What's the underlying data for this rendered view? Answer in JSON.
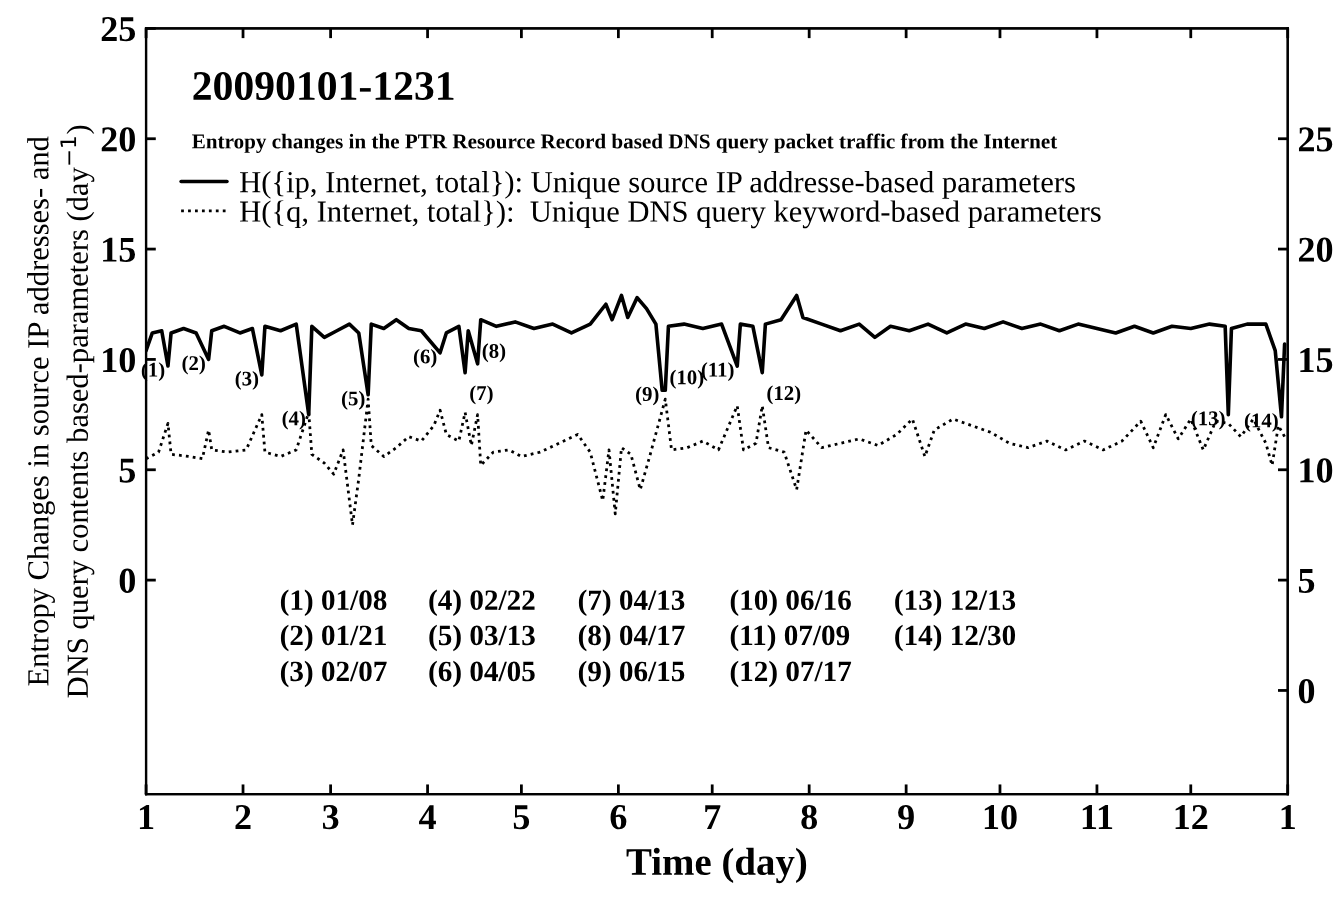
{
  "chart_data": {
    "type": "line",
    "title": "20090101-1231",
    "subtitle": "Entropy changes in the PTR Resource Record based DNS query packet traffic from the Internet",
    "xlabel": "Time (day)",
    "ylabel": "Entropy Changes in source IP addresses- and\nDNS query contents based-parameters (day$^{−1}$)",
    "xlim": [
      "2009-01-01",
      "2010-01-01"
    ],
    "xticks": [
      {
        "value": "2009-01-01",
        "label": "1"
      },
      {
        "value": "2009-02-01",
        "label": "2"
      },
      {
        "value": "2009-03-01",
        "label": "3"
      },
      {
        "value": "2009-04-01",
        "label": "4"
      },
      {
        "value": "2009-05-01",
        "label": "5"
      },
      {
        "value": "2009-06-01",
        "label": "6"
      },
      {
        "value": "2009-07-01",
        "label": "7"
      },
      {
        "value": "2009-08-01",
        "label": "8"
      },
      {
        "value": "2009-09-01",
        "label": "9"
      },
      {
        "value": "2009-10-01",
        "label": "10"
      },
      {
        "value": "2009-11-01",
        "label": "11"
      },
      {
        "value": "2009-12-01",
        "label": "12"
      },
      {
        "value": "2010-01-01",
        "label": "1"
      }
    ],
    "ylim": [
      -9.7,
      25
    ],
    "yticks": [
      0,
      5,
      10,
      15,
      20,
      25
    ],
    "y2lim": [
      -4.7,
      30
    ],
    "y2ticks": [
      0,
      5,
      10,
      15,
      20,
      25
    ],
    "grid": false,
    "legend": "top left",
    "marker": "none",
    "series": [
      {
        "name": "H({ip, Internet, total}): Unique source IP addresse-based parameters",
        "color": "#000000",
        "line_style": "solid",
        "x": [
          "2009-01-01",
          "2009-01-03",
          "2009-01-06",
          "2009-01-08",
          "2009-01-09",
          "2009-01-13",
          "2009-01-17",
          "2009-01-21",
          "2009-01-22",
          "2009-01-26",
          "2009-01-31",
          "2009-02-04",
          "2009-02-07",
          "2009-02-08",
          "2009-02-13",
          "2009-02-18",
          "2009-02-22",
          "2009-02-23",
          "2009-02-27",
          "2009-03-03",
          "2009-03-07",
          "2009-03-10",
          "2009-03-13",
          "2009-03-14",
          "2009-03-18",
          "2009-03-22",
          "2009-03-26",
          "2009-03-30",
          "2009-04-05",
          "2009-04-07",
          "2009-04-11",
          "2009-04-13",
          "2009-04-14",
          "2009-04-17",
          "2009-04-18",
          "2009-04-23",
          "2009-04-29",
          "2009-05-05",
          "2009-05-11",
          "2009-05-17",
          "2009-05-23",
          "2009-05-28",
          "2009-05-30",
          "2009-06-02",
          "2009-06-04",
          "2009-06-07",
          "2009-06-10",
          "2009-06-13",
          "2009-06-15",
          "2009-06-16",
          "2009-06-17",
          "2009-06-22",
          "2009-06-28",
          "2009-07-04",
          "2009-07-09",
          "2009-07-10",
          "2009-07-14",
          "2009-07-17",
          "2009-07-18",
          "2009-07-23",
          "2009-07-28",
          "2009-07-30",
          "2009-08-05",
          "2009-08-11",
          "2009-08-17",
          "2009-08-22",
          "2009-08-27",
          "2009-09-02",
          "2009-09-08",
          "2009-09-14",
          "2009-09-20",
          "2009-09-26",
          "2009-10-02",
          "2009-10-08",
          "2009-10-14",
          "2009-10-20",
          "2009-10-26",
          "2009-11-01",
          "2009-11-07",
          "2009-11-13",
          "2009-11-19",
          "2009-11-25",
          "2009-12-01",
          "2009-12-07",
          "2009-12-12",
          "2009-12-13",
          "2009-12-14",
          "2009-12-19",
          "2009-12-25",
          "2009-12-28",
          "2009-12-30",
          "2009-12-31"
        ],
        "values": [
          10.4,
          11.2,
          11.3,
          9.7,
          11.2,
          11.4,
          11.2,
          10.0,
          11.3,
          11.5,
          11.2,
          11.4,
          9.3,
          11.5,
          11.3,
          11.6,
          7.5,
          11.5,
          11.0,
          11.3,
          11.6,
          11.2,
          8.4,
          11.6,
          11.4,
          11.8,
          11.4,
          11.3,
          10.3,
          11.2,
          11.5,
          9.4,
          11.3,
          9.8,
          11.8,
          11.5,
          11.7,
          11.4,
          11.6,
          11.2,
          11.6,
          12.5,
          11.8,
          12.9,
          11.9,
          12.8,
          12.3,
          11.6,
          8.6,
          8.6,
          11.5,
          11.6,
          11.4,
          11.6,
          9.7,
          11.6,
          11.5,
          9.4,
          11.6,
          11.8,
          12.9,
          11.9,
          11.6,
          11.3,
          11.6,
          11.0,
          11.5,
          11.3,
          11.6,
          11.2,
          11.6,
          11.4,
          11.7,
          11.4,
          11.6,
          11.3,
          11.6,
          11.4,
          11.2,
          11.5,
          11.2,
          11.5,
          11.4,
          11.6,
          11.5,
          7.5,
          11.4,
          11.6,
          11.6,
          10.4,
          7.4,
          10.7
        ]
      },
      {
        "name": "H({q, Internet, total}):  Unique DNS query keyword-based parameters",
        "color": "#000000",
        "line_style": "dotted",
        "axis": "y2",
        "x": [
          "2009-01-01",
          "2009-01-05",
          "2009-01-08",
          "2009-01-09",
          "2009-01-15",
          "2009-01-19",
          "2009-01-21",
          "2009-01-22",
          "2009-01-27",
          "2009-02-02",
          "2009-02-07",
          "2009-02-08",
          "2009-02-13",
          "2009-02-18",
          "2009-02-22",
          "2009-02-23",
          "2009-02-27",
          "2009-03-02",
          "2009-03-05",
          "2009-03-08",
          "2009-03-10",
          "2009-03-13",
          "2009-03-14",
          "2009-03-18",
          "2009-03-22",
          "2009-03-26",
          "2009-03-30",
          "2009-04-03",
          "2009-04-05",
          "2009-04-07",
          "2009-04-11",
          "2009-04-13",
          "2009-04-15",
          "2009-04-17",
          "2009-04-18",
          "2009-04-22",
          "2009-04-27",
          "2009-05-01",
          "2009-05-07",
          "2009-05-13",
          "2009-05-19",
          "2009-05-23",
          "2009-05-27",
          "2009-05-29",
          "2009-05-31",
          "2009-06-02",
          "2009-06-05",
          "2009-06-08",
          "2009-06-11",
          "2009-06-16",
          "2009-06-18",
          "2009-06-23",
          "2009-06-28",
          "2009-07-03",
          "2009-07-09",
          "2009-07-11",
          "2009-07-15",
          "2009-07-17",
          "2009-07-19",
          "2009-07-24",
          "2009-07-28",
          "2009-07-31",
          "2009-08-05",
          "2009-08-11",
          "2009-08-17",
          "2009-08-23",
          "2009-08-29",
          "2009-09-03",
          "2009-09-07",
          "2009-09-10",
          "2009-09-16",
          "2009-09-22",
          "2009-09-28",
          "2009-10-04",
          "2009-10-10",
          "2009-10-16",
          "2009-10-22",
          "2009-10-28",
          "2009-11-03",
          "2009-11-09",
          "2009-11-15",
          "2009-11-19",
          "2009-11-23",
          "2009-11-27",
          "2009-12-01",
          "2009-12-05",
          "2009-12-09",
          "2009-12-13",
          "2009-12-17",
          "2009-12-21",
          "2009-12-25",
          "2009-12-27",
          "2009-12-29",
          "2009-12-31"
        ],
        "values": [
          10.5,
          10.8,
          12.1,
          10.7,
          10.6,
          10.5,
          11.8,
          10.9,
          10.8,
          10.9,
          12.5,
          10.8,
          10.6,
          10.9,
          12.6,
          10.7,
          10.3,
          9.8,
          10.9,
          7.5,
          9.6,
          13.2,
          11.1,
          10.6,
          11.0,
          11.5,
          11.3,
          12.0,
          12.7,
          11.6,
          11.3,
          12.6,
          11.1,
          12.5,
          10.2,
          10.8,
          10.9,
          10.6,
          10.8,
          11.2,
          11.6,
          10.8,
          8.6,
          10.9,
          8.0,
          11.0,
          10.7,
          9.1,
          10.6,
          13.2,
          10.9,
          11.0,
          11.3,
          10.9,
          12.9,
          10.9,
          11.2,
          12.9,
          11.0,
          10.8,
          9.1,
          11.8,
          11.0,
          11.2,
          11.4,
          11.1,
          11.6,
          12.3,
          10.6,
          11.8,
          12.3,
          12.0,
          11.7,
          11.2,
          11.0,
          11.3,
          10.9,
          11.3,
          10.9,
          11.3,
          12.2,
          11.0,
          12.5,
          11.4,
          12.3,
          10.9,
          12.2,
          12.1,
          11.5,
          12.3,
          11.2,
          10.2,
          12.0,
          11.5
        ]
      }
    ],
    "annotations": [
      {
        "text": "(1)",
        "x": "2009-01-08",
        "y": 9.7
      },
      {
        "text": "(2)",
        "x": "2009-01-21",
        "y": 10.0
      },
      {
        "text": "(3)",
        "x": "2009-02-07",
        "y": 9.3
      },
      {
        "text": "(4)",
        "x": "2009-02-22",
        "y": 7.5
      },
      {
        "text": "(5)",
        "x": "2009-03-13",
        "y": 8.4
      },
      {
        "text": "(6)",
        "x": "2009-04-05",
        "y": 10.3
      },
      {
        "text": "(7)",
        "x": "2009-04-13",
        "y": 9.4
      },
      {
        "text": "(8)",
        "x": "2009-04-17",
        "y": 9.8
      },
      {
        "text": "(9)",
        "x": "2009-06-15",
        "y": 8.6
      },
      {
        "text": "(10)",
        "x": "2009-06-16",
        "y": 8.6
      },
      {
        "text": "(11)",
        "x": "2009-07-09",
        "y": 9.7
      },
      {
        "text": "(12)",
        "x": "2009-07-17",
        "y": 9.4
      },
      {
        "text": "(13)",
        "x": "2009-12-13",
        "y": 7.5
      },
      {
        "text": "(14)",
        "x": "2009-12-30",
        "y": 7.4
      },
      "(1) 01/08",
      "(2) 01/21",
      "(3) 02/07",
      "(4) 02/22",
      "(5) 03/13",
      "(6) 04/05",
      "(7) 04/13",
      "(8) 04/17",
      "(9) 06/15",
      "(10) 06/16",
      "(11) 07/09",
      "(12) 07/17",
      "(13) 12/13",
      "(14) 12/30"
    ]
  }
}
